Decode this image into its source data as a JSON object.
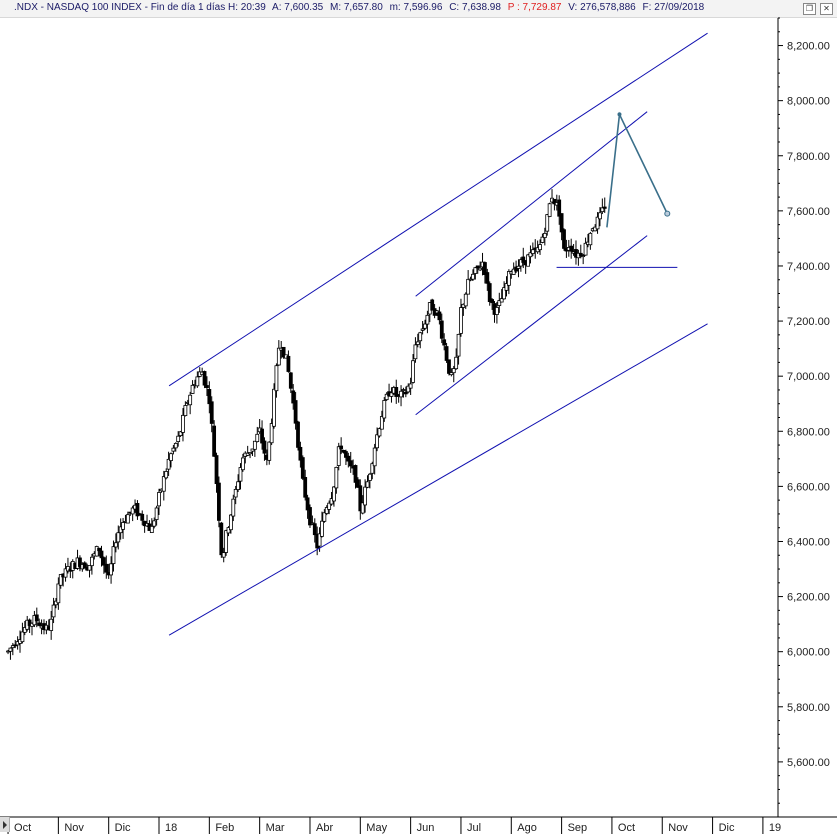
{
  "header": {
    "symbol": ".NDX - NASDAQ 100 INDEX - Fin de día 1 días",
    "h_label": "H:",
    "h_value": "20:39",
    "a_label": "A:",
    "a_value": "7,600.35",
    "m_label": "M:",
    "m_value": "7,657.80",
    "mn_label": "m:",
    "mn_value": "7,596.96",
    "c_label": "C:",
    "c_value": "7,638.98",
    "p_label": "P :",
    "p_value": "7,729.87",
    "v_label": "V:",
    "v_value": "276,578,886",
    "f_label": "F:",
    "f_value": "27/09/2018"
  },
  "window_icons": [
    "restore-icon",
    "close-icon"
  ],
  "colors": {
    "candle": "#000000",
    "trendline": "#1010b0",
    "projection": "#3a6f8a",
    "support": "#1010b0"
  },
  "chart_data": {
    "type": "candlestick",
    "title": "",
    "xlabel": "",
    "ylabel": "",
    "ylim": [
      5400,
      8300
    ],
    "y_ticks": [
      "8,200.00",
      "8,000.00",
      "7,800.00",
      "7,600.00",
      "7,400.00",
      "7,200.00",
      "7,000.00",
      "6,800.00",
      "6,600.00",
      "6,400.00",
      "6,200.00",
      "6,000.00",
      "5,800.00",
      "5,600.00"
    ],
    "y_tick_values": [
      8200,
      8000,
      7800,
      7600,
      7400,
      7200,
      7000,
      6800,
      6600,
      6400,
      6200,
      6000,
      5800,
      5600
    ],
    "x_ticks": [
      "Oct",
      "Nov",
      "Dic",
      "18",
      "Feb",
      "Mar",
      "Abr",
      "May",
      "Jun",
      "Jul",
      "Ago",
      "Sep",
      "Oct",
      "Nov",
      "Dic",
      "19"
    ],
    "x_tick_months": [
      0,
      1,
      2,
      3,
      4,
      5,
      6,
      7,
      8,
      9,
      10,
      11,
      12,
      13,
      14,
      15
    ],
    "x_range_months": [
      -0.12,
      15.3
    ],
    "grid": false,
    "price_series_anchors": [
      [
        0.0,
        6000
      ],
      [
        0.15,
        6040
      ],
      [
        0.35,
        6090
      ],
      [
        0.55,
        6120
      ],
      [
        0.75,
        6080
      ],
      [
        0.85,
        6100
      ],
      [
        1.0,
        6250
      ],
      [
        1.2,
        6300
      ],
      [
        1.4,
        6330
      ],
      [
        1.6,
        6310
      ],
      [
        1.8,
        6380
      ],
      [
        2.0,
        6260
      ],
      [
        2.15,
        6420
      ],
      [
        2.3,
        6480
      ],
      [
        2.5,
        6520
      ],
      [
        2.7,
        6480
      ],
      [
        2.85,
        6440
      ],
      [
        3.0,
        6560
      ],
      [
        3.2,
        6700
      ],
      [
        3.4,
        6780
      ],
      [
        3.55,
        6900
      ],
      [
        3.7,
        6980
      ],
      [
        3.85,
        7020
      ],
      [
        4.0,
        6920
      ],
      [
        4.15,
        6600
      ],
      [
        4.25,
        6330
      ],
      [
        4.35,
        6440
      ],
      [
        4.5,
        6560
      ],
      [
        4.65,
        6700
      ],
      [
        4.85,
        6740
      ],
      [
        5.0,
        6800
      ],
      [
        5.15,
        6680
      ],
      [
        5.3,
        6960
      ],
      [
        5.4,
        7140
      ],
      [
        5.55,
        7040
      ],
      [
        5.7,
        6860
      ],
      [
        5.85,
        6620
      ],
      [
        6.0,
        6480
      ],
      [
        6.15,
        6380
      ],
      [
        6.3,
        6520
      ],
      [
        6.45,
        6580
      ],
      [
        6.6,
        6760
      ],
      [
        6.75,
        6680
      ],
      [
        6.9,
        6640
      ],
      [
        7.0,
        6520
      ],
      [
        7.15,
        6620
      ],
      [
        7.3,
        6760
      ],
      [
        7.45,
        6880
      ],
      [
        7.6,
        6960
      ],
      [
        7.75,
        6920
      ],
      [
        7.9,
        6940
      ],
      [
        8.0,
        6980
      ],
      [
        8.1,
        7120
      ],
      [
        8.25,
        7180
      ],
      [
        8.4,
        7260
      ],
      [
        8.55,
        7220
      ],
      [
        8.7,
        7080
      ],
      [
        8.8,
        6990
      ],
      [
        8.9,
        7040
      ],
      [
        9.0,
        7240
      ],
      [
        9.15,
        7340
      ],
      [
        9.3,
        7380
      ],
      [
        9.45,
        7420
      ],
      [
        9.55,
        7290
      ],
      [
        9.7,
        7230
      ],
      [
        9.85,
        7300
      ],
      [
        10.0,
        7390
      ],
      [
        10.2,
        7410
      ],
      [
        10.4,
        7440
      ],
      [
        10.55,
        7460
      ],
      [
        10.7,
        7560
      ],
      [
        10.8,
        7660
      ],
      [
        10.95,
        7600
      ],
      [
        11.05,
        7450
      ],
      [
        11.15,
        7480
      ],
      [
        11.3,
        7440
      ],
      [
        11.45,
        7460
      ],
      [
        11.6,
        7540
      ],
      [
        11.75,
        7570
      ],
      [
        11.9,
        7640
      ]
    ],
    "candles": [
      {
        "month": 0.0,
        "o": 5985,
        "h": 6010,
        "l": 5975,
        "c": 6000
      },
      {
        "month": 8.8,
        "o": 7000,
        "h": 7040,
        "l": 6960,
        "c": 6990
      },
      {
        "month": 11.9,
        "o": 7600.35,
        "h": 7657.8,
        "l": 7596.96,
        "c": 7638.98
      }
    ],
    "trendlines": [
      {
        "name": "outer-upper",
        "from": [
          3.2,
          6965
        ],
        "to": [
          13.9,
          8245
        ]
      },
      {
        "name": "outer-lower",
        "from": [
          3.2,
          6060
        ],
        "to": [
          13.9,
          7190
        ]
      },
      {
        "name": "inner-upper",
        "from": [
          8.1,
          7290
        ],
        "to": [
          12.7,
          7960
        ]
      },
      {
        "name": "inner-lower",
        "from": [
          8.1,
          6860
        ],
        "to": [
          12.7,
          7510
        ]
      }
    ],
    "support_line": {
      "from": [
        10.9,
        7395
      ],
      "to": [
        13.3,
        7395
      ]
    },
    "projection": [
      [
        11.9,
        7540
      ],
      [
        12.15,
        7950
      ],
      [
        13.1,
        7590
      ]
    ]
  }
}
